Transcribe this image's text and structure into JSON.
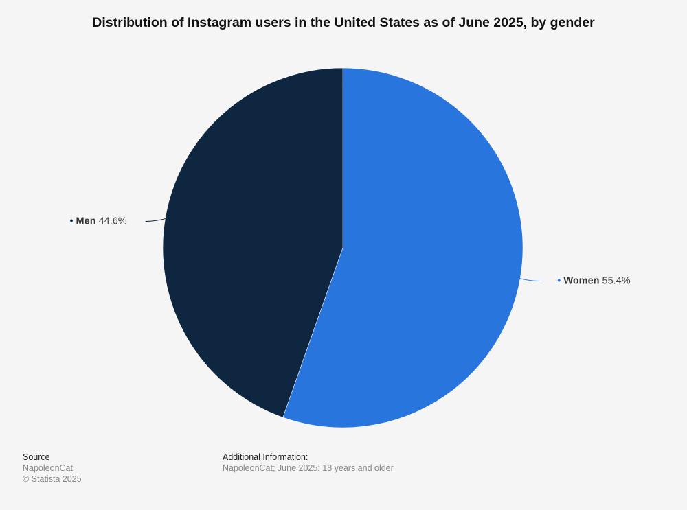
{
  "chart_data": {
    "type": "pie",
    "title": "Distribution of Instagram users in the United States as of June 2025, by gender",
    "slices": [
      {
        "label": "Women",
        "value": 55.4,
        "display": "55.4%",
        "color": "#2876dd"
      },
      {
        "label": "Men",
        "value": 44.6,
        "display": "44.6%",
        "color": "#0f2640"
      }
    ],
    "start": "top, clockwise"
  },
  "footer": {
    "source_label": "Source",
    "source_value": "NapoleonCat",
    "copyright": "© Statista 2025",
    "additional_label": "Additional Information:",
    "additional_value": "NapoleonCat; June 2025; 18 years and older"
  }
}
